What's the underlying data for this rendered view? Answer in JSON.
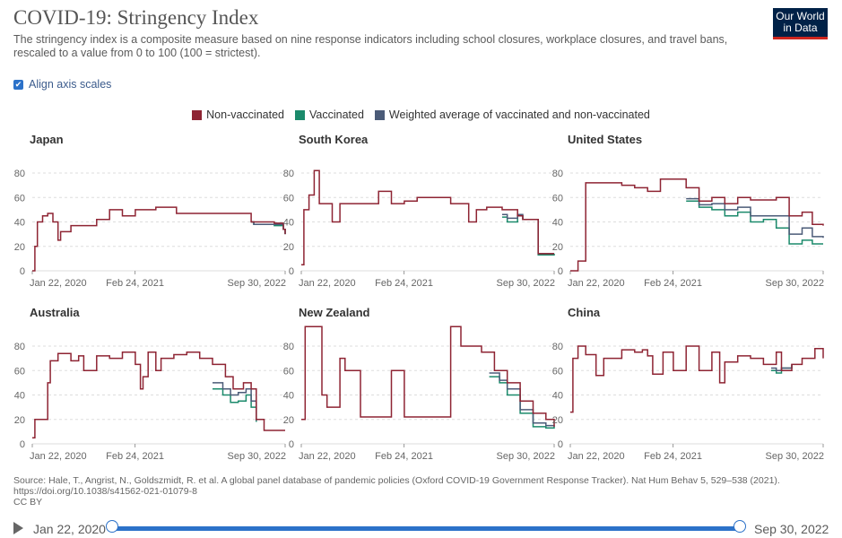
{
  "title": "COVID-19: Stringency Index",
  "subtitle": "The stringency index is a composite measure based on nine response indicators including school closures, workplace closures, and travel bans, rescaled to a value from 0 to 100 (100 = strictest).",
  "logo": {
    "line1": "Our World",
    "line2": "in Data"
  },
  "align_axis_label": "Align axis scales",
  "colors": {
    "non_vaccinated": "#8e2433",
    "vaccinated": "#1b8a6b",
    "weighted": "#4b5b78"
  },
  "legend": [
    "Non-vaccinated",
    "Vaccinated",
    "Weighted average of vaccinated and non-vaccinated"
  ],
  "source": "Source: Hale, T., Angrist, N., Goldszmidt, R. et al. A global panel database of pandemic policies (Oxford COVID-19 Government Response Tracker). Nat Hum Behav 5, 529–538 (2021). https://doi.org/10.1038/s41562-021-01079-8",
  "license": "CC BY",
  "timeline": {
    "start": "Jan 22, 2020",
    "end": "Sep 30, 2022"
  },
  "chart_data": [
    {
      "type": "line",
      "title": "Japan",
      "xlabel": "",
      "ylabel": "",
      "xlim": [
        0,
        982
      ],
      "ylim": [
        0,
        80
      ],
      "yticks": [
        0,
        20,
        40,
        60,
        80
      ],
      "xtick_labels": [
        "Jan 22, 2020",
        "Feb 24, 2021",
        "Sep 30, 2022"
      ],
      "xtick_pos": [
        0,
        399,
        982
      ],
      "series": [
        {
          "name": "Non-vaccinated",
          "values": [
            [
              0,
              0
            ],
            [
              10,
              20
            ],
            [
              20,
              40
            ],
            [
              40,
              45
            ],
            [
              60,
              47
            ],
            [
              80,
              40
            ],
            [
              100,
              25
            ],
            [
              110,
              32
            ],
            [
              150,
              37
            ],
            [
              250,
              42
            ],
            [
              300,
              50
            ],
            [
              350,
              45
            ],
            [
              400,
              50
            ],
            [
              480,
              52
            ],
            [
              560,
              47
            ],
            [
              750,
              47
            ],
            [
              850,
              40
            ],
            [
              940,
              39
            ],
            [
              975,
              34
            ],
            [
              982,
              30
            ]
          ]
        },
        {
          "name": "Vaccinated",
          "values": [
            [
              850,
              40
            ],
            [
              860,
              38
            ],
            [
              940,
              37
            ],
            [
              975,
              34
            ],
            [
              982,
              30
            ]
          ]
        },
        {
          "name": "Weighted average",
          "values": [
            [
              850,
              40
            ],
            [
              860,
              38
            ],
            [
              940,
              38
            ],
            [
              975,
              34
            ],
            [
              982,
              30
            ]
          ]
        }
      ]
    },
    {
      "type": "line",
      "title": "South Korea",
      "xlabel": "",
      "ylabel": "",
      "xlim": [
        0,
        982
      ],
      "ylim": [
        0,
        80
      ],
      "yticks": [
        0,
        20,
        40,
        60,
        80
      ],
      "xtick_labels": [
        "Jan 22, 2020",
        "Feb 24, 2021",
        "Sep 30, 2022"
      ],
      "xtick_pos": [
        0,
        399,
        982
      ],
      "series": [
        {
          "name": "Non-vaccinated",
          "values": [
            [
              0,
              5
            ],
            [
              10,
              50
            ],
            [
              30,
              62
            ],
            [
              50,
              82
            ],
            [
              70,
              55
            ],
            [
              120,
              40
            ],
            [
              150,
              55
            ],
            [
              250,
              55
            ],
            [
              300,
              65
            ],
            [
              350,
              55
            ],
            [
              400,
              57
            ],
            [
              450,
              60
            ],
            [
              500,
              60
            ],
            [
              580,
              55
            ],
            [
              650,
              40
            ],
            [
              680,
              50
            ],
            [
              720,
              52
            ],
            [
              780,
              50
            ],
            [
              840,
              45
            ],
            [
              860,
              42
            ],
            [
              900,
              42
            ],
            [
              920,
              14
            ],
            [
              982,
              14
            ]
          ]
        },
        {
          "name": "Vaccinated",
          "values": [
            [
              780,
              44
            ],
            [
              800,
              40
            ],
            [
              840,
              45
            ],
            [
              860,
              42
            ],
            [
              900,
              42
            ],
            [
              920,
              13
            ],
            [
              982,
              14
            ]
          ]
        },
        {
          "name": "Weighted average",
          "values": [
            [
              780,
              46
            ],
            [
              800,
              43
            ],
            [
              840,
              46
            ],
            [
              860,
              42
            ],
            [
              900,
              42
            ],
            [
              920,
              14
            ],
            [
              982,
              14
            ]
          ]
        }
      ]
    },
    {
      "type": "line",
      "title": "United States",
      "xlabel": "",
      "ylabel": "",
      "xlim": [
        0,
        982
      ],
      "ylim": [
        0,
        80
      ],
      "yticks": [
        0,
        20,
        40,
        60,
        80
      ],
      "xtick_labels": [
        "Jan 22, 2020",
        "Feb 24, 2021",
        "Sep 30, 2022"
      ],
      "xtick_pos": [
        0,
        399,
        982
      ],
      "series": [
        {
          "name": "Non-vaccinated",
          "values": [
            [
              0,
              0
            ],
            [
              30,
              8
            ],
            [
              60,
              72
            ],
            [
              200,
              70
            ],
            [
              250,
              68
            ],
            [
              300,
              65
            ],
            [
              350,
              75
            ],
            [
              450,
              68
            ],
            [
              500,
              57
            ],
            [
              550,
              60
            ],
            [
              600,
              55
            ],
            [
              650,
              60
            ],
            [
              700,
              58
            ],
            [
              800,
              60
            ],
            [
              850,
              45
            ],
            [
              900,
              48
            ],
            [
              940,
              38
            ],
            [
              982,
              37
            ]
          ]
        },
        {
          "name": "Vaccinated",
          "values": [
            [
              450,
              57
            ],
            [
              500,
              52
            ],
            [
              550,
              50
            ],
            [
              600,
              45
            ],
            [
              650,
              48
            ],
            [
              700,
              40
            ],
            [
              750,
              42
            ],
            [
              800,
              35
            ],
            [
              850,
              22
            ],
            [
              900,
              25
            ],
            [
              940,
              22
            ],
            [
              982,
              22
            ]
          ]
        },
        {
          "name": "Weighted average",
          "values": [
            [
              450,
              59
            ],
            [
              500,
              54
            ],
            [
              550,
              55
            ],
            [
              600,
              50
            ],
            [
              650,
              52
            ],
            [
              700,
              45
            ],
            [
              750,
              45
            ],
            [
              800,
              45
            ],
            [
              850,
              30
            ],
            [
              900,
              35
            ],
            [
              940,
              28
            ],
            [
              982,
              27
            ]
          ]
        }
      ]
    },
    {
      "type": "line",
      "title": "Australia",
      "xlabel": "",
      "ylabel": "",
      "xlim": [
        0,
        982
      ],
      "ylim": [
        0,
        80
      ],
      "yticks": [
        0,
        20,
        40,
        60,
        80
      ],
      "xtick_labels": [
        "Jan 22, 2020",
        "Feb 24, 2021",
        "Sep 30, 2022"
      ],
      "xtick_pos": [
        0,
        399,
        982
      ],
      "series": [
        {
          "name": "Non-vaccinated",
          "values": [
            [
              0,
              5
            ],
            [
              10,
              20
            ],
            [
              50,
              20
            ],
            [
              60,
              50
            ],
            [
              70,
              68
            ],
            [
              100,
              74
            ],
            [
              150,
              68
            ],
            [
              180,
              72
            ],
            [
              200,
              60
            ],
            [
              250,
              72
            ],
            [
              300,
              70
            ],
            [
              350,
              75
            ],
            [
              400,
              65
            ],
            [
              420,
              45
            ],
            [
              430,
              55
            ],
            [
              450,
              75
            ],
            [
              480,
              60
            ],
            [
              500,
              70
            ],
            [
              550,
              73
            ],
            [
              600,
              75
            ],
            [
              650,
              70
            ],
            [
              700,
              65
            ],
            [
              750,
              55
            ],
            [
              780,
              45
            ],
            [
              820,
              50
            ],
            [
              850,
              45
            ],
            [
              870,
              20
            ],
            [
              900,
              11
            ],
            [
              982,
              11
            ]
          ]
        },
        {
          "name": "Vaccinated",
          "values": [
            [
              700,
              45
            ],
            [
              740,
              40
            ],
            [
              770,
              34
            ],
            [
              800,
              35
            ],
            [
              830,
              40
            ],
            [
              850,
              30
            ],
            [
              870,
              18
            ]
          ]
        },
        {
          "name": "Weighted average",
          "values": [
            [
              700,
              50
            ],
            [
              740,
              45
            ],
            [
              770,
              40
            ],
            [
              800,
              42
            ],
            [
              830,
              45
            ],
            [
              850,
              35
            ],
            [
              870,
              19
            ]
          ]
        }
      ]
    },
    {
      "type": "line",
      "title": "New Zealand",
      "xlabel": "",
      "ylabel": "",
      "xlim": [
        0,
        982
      ],
      "ylim": [
        0,
        80
      ],
      "yticks": [
        0,
        20,
        40,
        60,
        80
      ],
      "xtick_labels": [
        "Jan 22, 2020",
        "Feb 24, 2021",
        "Sep 30, 2022"
      ],
      "xtick_pos": [
        0,
        399,
        982
      ],
      "series": [
        {
          "name": "Non-vaccinated",
          "values": [
            [
              0,
              20
            ],
            [
              15,
              96
            ],
            [
              60,
              96
            ],
            [
              80,
              40
            ],
            [
              100,
              30
            ],
            [
              150,
              70
            ],
            [
              170,
              60
            ],
            [
              230,
              22
            ],
            [
              300,
              22
            ],
            [
              350,
              60
            ],
            [
              400,
              22
            ],
            [
              560,
              22
            ],
            [
              580,
              96
            ],
            [
              620,
              80
            ],
            [
              700,
              75
            ],
            [
              750,
              60
            ],
            [
              800,
              50
            ],
            [
              850,
              35
            ],
            [
              900,
              25
            ],
            [
              950,
              20
            ],
            [
              982,
              14
            ]
          ]
        },
        {
          "name": "Vaccinated",
          "values": [
            [
              730,
              55
            ],
            [
              770,
              50
            ],
            [
              800,
              40
            ],
            [
              850,
              25
            ],
            [
              900,
              14
            ],
            [
              950,
              13
            ],
            [
              982,
              14
            ]
          ]
        },
        {
          "name": "Weighted average",
          "values": [
            [
              730,
              58
            ],
            [
              770,
              52
            ],
            [
              800,
              45
            ],
            [
              850,
              28
            ],
            [
              900,
              17
            ],
            [
              950,
              15
            ],
            [
              982,
              14
            ]
          ]
        }
      ]
    },
    {
      "type": "line",
      "title": "China",
      "xlabel": "",
      "ylabel": "",
      "xlim": [
        0,
        982
      ],
      "ylim": [
        0,
        80
      ],
      "yticks": [
        0,
        20,
        40,
        60,
        80
      ],
      "xtick_labels": [
        "Jan 22, 2020",
        "Feb 24, 2021",
        "Sep 30, 2022"
      ],
      "xtick_pos": [
        0,
        399,
        982
      ],
      "series": [
        {
          "name": "Non-vaccinated",
          "values": [
            [
              0,
              26
            ],
            [
              10,
              70
            ],
            [
              30,
              80
            ],
            [
              60,
              73
            ],
            [
              100,
              56
            ],
            [
              130,
              70
            ],
            [
              200,
              77
            ],
            [
              250,
              75
            ],
            [
              280,
              77
            ],
            [
              300,
              72
            ],
            [
              320,
              57
            ],
            [
              360,
              75
            ],
            [
              400,
              60
            ],
            [
              450,
              80
            ],
            [
              500,
              60
            ],
            [
              550,
              75
            ],
            [
              580,
              50
            ],
            [
              600,
              67
            ],
            [
              650,
              72
            ],
            [
              700,
              70
            ],
            [
              750,
              65
            ],
            [
              800,
              75
            ],
            [
              820,
              60
            ],
            [
              860,
              65
            ],
            [
              900,
              70
            ],
            [
              950,
              78
            ],
            [
              982,
              70
            ]
          ]
        },
        {
          "name": "Vaccinated",
          "values": [
            [
              780,
              60
            ],
            [
              800,
              58
            ],
            [
              820,
              62
            ],
            [
              860,
              65
            ]
          ]
        },
        {
          "name": "Weighted average",
          "values": [
            [
              780,
              62
            ],
            [
              800,
              60
            ],
            [
              820,
              62
            ],
            [
              860,
              65
            ]
          ]
        }
      ]
    }
  ]
}
